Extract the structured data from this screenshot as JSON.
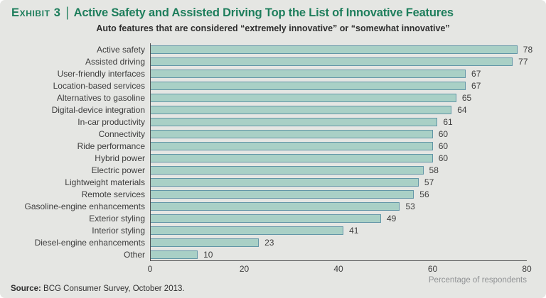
{
  "header": {
    "exhibit_label": "Exhibit 3",
    "separator": "|",
    "title": "Active Safety and Assisted Driving Top the List of Innovative Features",
    "subtitle": "Auto features that are considered “extremely innovative” or “somewhat innovative”"
  },
  "chart_data": {
    "type": "bar",
    "orientation": "horizontal",
    "title": "Auto features that are considered “extremely innovative” or “somewhat innovative”",
    "categories": [
      "Active safety",
      "Assisted driving",
      "User-friendly interfaces",
      "Location-based services",
      "Alternatives to gasoline",
      "Digital-device integration",
      "In-car productivity",
      "Connectivity",
      "Ride performance",
      "Hybrid power",
      "Electric power",
      "Lightweight materials",
      "Remote services",
      "Gasoline-engine enhancements",
      "Exterior styling",
      "Interior styling",
      "Diesel-engine enhancements",
      "Other"
    ],
    "values": [
      78,
      77,
      67,
      67,
      65,
      64,
      61,
      60,
      60,
      60,
      58,
      57,
      56,
      53,
      49,
      41,
      23,
      10
    ],
    "xlabel": "Percentage of respondents",
    "ylabel": "",
    "xlim": [
      0,
      80
    ],
    "xticks": [
      0,
      20,
      40,
      60,
      80
    ],
    "grid": "off",
    "legend": "none",
    "bar_fill": "#a9d0c6",
    "bar_border": "#6296a7"
  },
  "footer": {
    "source_label": "Source:",
    "source_text": " BCG Consumer Survey, October 2013."
  },
  "colors": {
    "background": "#e5e6e3",
    "title_green": "#1e7e5c",
    "text_dark": "#3d3d3d",
    "axis": "#4f5052",
    "xlabel_gray": "#909294"
  }
}
